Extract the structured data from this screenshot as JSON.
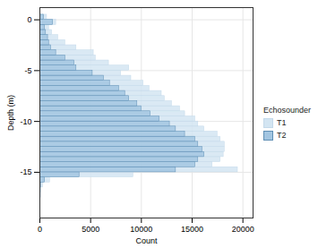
{
  "chart_data": {
    "type": "histogram",
    "orientation": "horizontal",
    "x_label": "Count",
    "y_label": "Depth (m)",
    "bins": [
      -18.5,
      -18,
      -17.5,
      -17,
      -16.5,
      -16,
      -15.5,
      -15,
      -14.5,
      -14,
      -13.5,
      -13,
      -12.5,
      -12,
      -11.5,
      -11,
      -10.5,
      -10,
      -9.5,
      -9,
      -8.5,
      -8,
      -7.5,
      -7,
      -6.5,
      -6,
      -5.5,
      -5,
      -4.5,
      -4,
      -3.5,
      -3,
      -2.5,
      -2,
      -1.5,
      -1,
      -0.5,
      0,
      0.5
    ],
    "series": [
      {
        "name": "T1",
        "color": "#d3e5f2",
        "values": [
          30,
          50,
          100,
          150,
          300,
          1000,
          9200,
          19500,
          17000,
          17800,
          18100,
          18200,
          18200,
          17800,
          17500,
          16200,
          15600,
          15300,
          14300,
          13800,
          13000,
          12300,
          12000,
          10800,
          10200,
          9000,
          8000,
          8800,
          6800,
          5500,
          5300,
          3600,
          2500,
          1800,
          1200,
          900,
          1600,
          700
        ]
      },
      {
        "name": "T2",
        "color": "#a2c5e1",
        "values": [
          0,
          0,
          0,
          50,
          100,
          500,
          3900,
          13400,
          15300,
          15600,
          16200,
          16000,
          15600,
          15300,
          14300,
          13400,
          12800,
          11800,
          10900,
          10000,
          9600,
          8800,
          8400,
          7800,
          6900,
          6300,
          5200,
          3600,
          3400,
          2500,
          1600,
          1100,
          900,
          800,
          600,
          500,
          1300,
          400
        ]
      }
    ],
    "xlim": [
      0,
      21000
    ],
    "xticks": [
      0,
      5000,
      10000,
      15000,
      20000
    ],
    "ylim": [
      -19.5,
      1.2
    ],
    "yticks": [
      0,
      -5,
      -10,
      -15
    ],
    "grid": true,
    "legend": "right",
    "legend_title": "Echosounder"
  }
}
